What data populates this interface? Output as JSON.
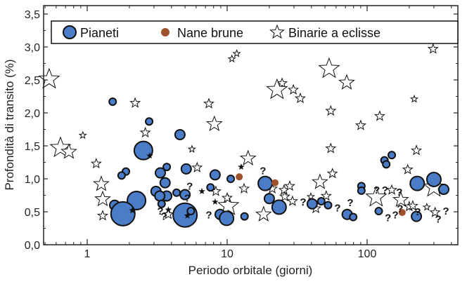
{
  "chart_data": {
    "type": "scatter",
    "title": "",
    "xlabel": "Periodo orbitale (giorni)",
    "ylabel": "Profondità di transito (%)",
    "xscale": "log",
    "xlim": [
      0.49,
      440
    ],
    "ylim": [
      0,
      3.62
    ],
    "x_ticks": [
      {
        "value": 1,
        "label": "1"
      },
      {
        "value": 10,
        "label": "10"
      },
      {
        "value": 100,
        "label": "100"
      }
    ],
    "y_ticks": [
      {
        "value": 0,
        "label": "0,0"
      },
      {
        "value": 0.5,
        "label": "0,5"
      },
      {
        "value": 1,
        "label": "1,0"
      },
      {
        "value": 1.5,
        "label": "1,5"
      },
      {
        "value": 2,
        "label": "2,0"
      },
      {
        "value": 2.5,
        "label": "2,5"
      },
      {
        "value": 3,
        "label": "3,0"
      },
      {
        "value": 3.5,
        "label": "3,5"
      }
    ],
    "legend_position": "top",
    "colors": {
      "planet": "#4a7cc7",
      "brown_dwarf": "#a0522d",
      "binary": "#ffffff",
      "edge": "#111111"
    },
    "unknown_marker_label": "?",
    "series": [
      {
        "name": "Pianeti",
        "marker": "circle",
        "points": [
          [
            1.52,
            2.17,
            1
          ],
          [
            2.77,
            1.87,
            1
          ],
          [
            4.6,
            1.67,
            2
          ],
          [
            2.52,
            1.43,
            4
          ],
          [
            3.7,
            1.18,
            1
          ],
          [
            3.33,
            1.09,
            2
          ],
          [
            5.1,
            1.15,
            2
          ],
          [
            8.2,
            1.06,
            2
          ],
          [
            10.6,
            1.0,
            1
          ],
          [
            1.89,
            1.11,
            1
          ],
          [
            1.76,
            1.05,
            1
          ],
          [
            3.6,
            0.94,
            2
          ],
          [
            3.1,
            0.81,
            2
          ],
          [
            3.7,
            0.74,
            2
          ],
          [
            3.3,
            0.74,
            2
          ],
          [
            4.35,
            0.79,
            1
          ],
          [
            5.0,
            0.76,
            2
          ],
          [
            7.6,
            0.87,
            1
          ],
          [
            3.4,
            0.62,
            1
          ],
          [
            1.57,
            0.6,
            2
          ],
          [
            2.25,
            0.67,
            4
          ],
          [
            1.8,
            0.47,
            5
          ],
          [
            5.0,
            0.45,
            5
          ],
          [
            5.5,
            0.51,
            1
          ],
          [
            8.9,
            0.46,
            2
          ],
          [
            9.9,
            0.4,
            3
          ],
          [
            13.3,
            0.43,
            1
          ],
          [
            18.7,
            0.93,
            3
          ],
          [
            20,
            0.7,
            2
          ],
          [
            23.5,
            0.57,
            3
          ],
          [
            40.5,
            0.62,
            2
          ],
          [
            47,
            0.66,
            1
          ],
          [
            52.6,
            0.6,
            1
          ],
          [
            72,
            0.46,
            2
          ],
          [
            79.5,
            0.42,
            1
          ],
          [
            91,
            0.89,
            1
          ],
          [
            91,
            0.82,
            1
          ],
          [
            133,
            1.28,
            1
          ],
          [
            137,
            1.22,
            1
          ],
          [
            150,
            1.36,
            1
          ],
          [
            121,
            0.51,
            1
          ],
          [
            228,
            0.93,
            3
          ],
          [
            300,
            0.99,
            3
          ],
          [
            353,
            0.84,
            2
          ],
          [
            225,
            0.43,
            2
          ]
        ]
      },
      {
        "name": "Nane brune",
        "marker": "dot",
        "points": [
          [
            12.2,
            1.03,
            1
          ],
          [
            22,
            0.94,
            1
          ],
          [
            178,
            0.49,
            1
          ]
        ]
      },
      {
        "name": "Binarie a eclisse",
        "marker": "star",
        "points": [
          [
            0.535,
            2.51,
            4
          ],
          [
            0.644,
            1.47,
            4
          ],
          [
            0.74,
            1.41,
            3
          ],
          [
            0.93,
            1.66,
            1
          ],
          [
            2.2,
            2.15,
            2
          ],
          [
            2.6,
            1.7,
            2
          ],
          [
            1.29,
            0.44,
            2
          ],
          [
            1.16,
            1.23,
            2
          ],
          [
            1.26,
            0.92,
            3
          ],
          [
            1.29,
            0.69,
            3
          ],
          [
            7.4,
            2.14,
            2
          ],
          [
            8.1,
            1.83,
            3
          ],
          [
            14.1,
            1.31,
            3
          ],
          [
            13.2,
            0.85,
            2
          ],
          [
            10.2,
            0.59,
            4
          ],
          [
            10,
            0.71,
            2
          ],
          [
            8.3,
            0.81,
            2
          ],
          [
            6.1,
            1.17,
            2
          ],
          [
            5.6,
            1.45,
            1
          ],
          [
            3.8,
            0.46,
            2
          ],
          [
            18.2,
            0.46,
            3
          ],
          [
            21,
            0.85,
            2
          ],
          [
            25.5,
            0.83,
            2
          ],
          [
            28,
            0.89,
            2
          ],
          [
            25.8,
            0.73,
            2
          ],
          [
            29.3,
            0.66,
            2
          ],
          [
            39.6,
            0.73,
            1
          ],
          [
            43,
            0.55,
            2
          ],
          [
            51,
            0.74,
            2
          ],
          [
            46,
            0.95,
            3
          ],
          [
            56.5,
            1.08,
            2
          ],
          [
            55,
            1.46,
            2
          ],
          [
            116,
            0.72,
            4
          ],
          [
            150,
            0.83,
            2
          ],
          [
            174,
            0.68,
            3
          ],
          [
            195,
            1.14,
            2
          ],
          [
            225,
            1.43,
            2
          ],
          [
            200,
            0.58,
            2
          ],
          [
            212,
            0.59,
            2
          ],
          [
            267,
            0.57,
            1
          ],
          [
            300,
            0.87,
            4
          ],
          [
            306,
            0.49,
            2
          ],
          [
            10.8,
            2.82,
            1
          ],
          [
            11.7,
            2.9,
            1
          ],
          [
            24.7,
            2.45,
            2
          ],
          [
            22.7,
            2.35,
            4
          ],
          [
            29.7,
            2.35,
            2
          ],
          [
            33.3,
            2.22,
            2
          ],
          [
            53.5,
            2.67,
            4
          ],
          [
            71.5,
            2.46,
            3
          ],
          [
            55,
            2.03,
            2
          ],
          [
            90,
            1.81,
            2
          ],
          [
            123,
            1.95,
            2
          ],
          [
            217,
            2.21,
            1
          ],
          [
            296,
            2.97,
            2
          ]
        ],
        "filled_points": [
          [
            12.6,
            1.18
          ],
          [
            6.6,
            0.81
          ],
          [
            8.2,
            0.65
          ],
          [
            2.8,
            1.35
          ],
          [
            3.8,
            0.53
          ],
          [
            2.1,
            0.52
          ],
          [
            5.2,
            0.44
          ]
        ]
      },
      {
        "name": "unknown",
        "marker": "?",
        "points": [
          [
            18,
            1.12
          ],
          [
            34.9,
            0.65
          ],
          [
            61.5,
            0.56
          ],
          [
            75.7,
            0.64
          ],
          [
            117,
            0.83
          ],
          [
            134,
            0.83
          ],
          [
            170,
            0.8
          ],
          [
            141,
            0.41
          ],
          [
            159,
            0.45
          ],
          [
            172,
            0.55
          ],
          [
            230,
            0.5
          ],
          [
            322,
            0.39
          ],
          [
            366,
            0.51
          ],
          [
            5.4,
            0.89
          ],
          [
            5.2,
            0.71
          ],
          [
            3.33,
            0.51
          ],
          [
            3.53,
            0.43
          ],
          [
            7.4,
            0.45
          ]
        ]
      }
    ]
  },
  "legend": {
    "planets": "Pianeti",
    "brown_dwarfs": "Nane brune",
    "binaries": "Binarie a eclisse"
  }
}
